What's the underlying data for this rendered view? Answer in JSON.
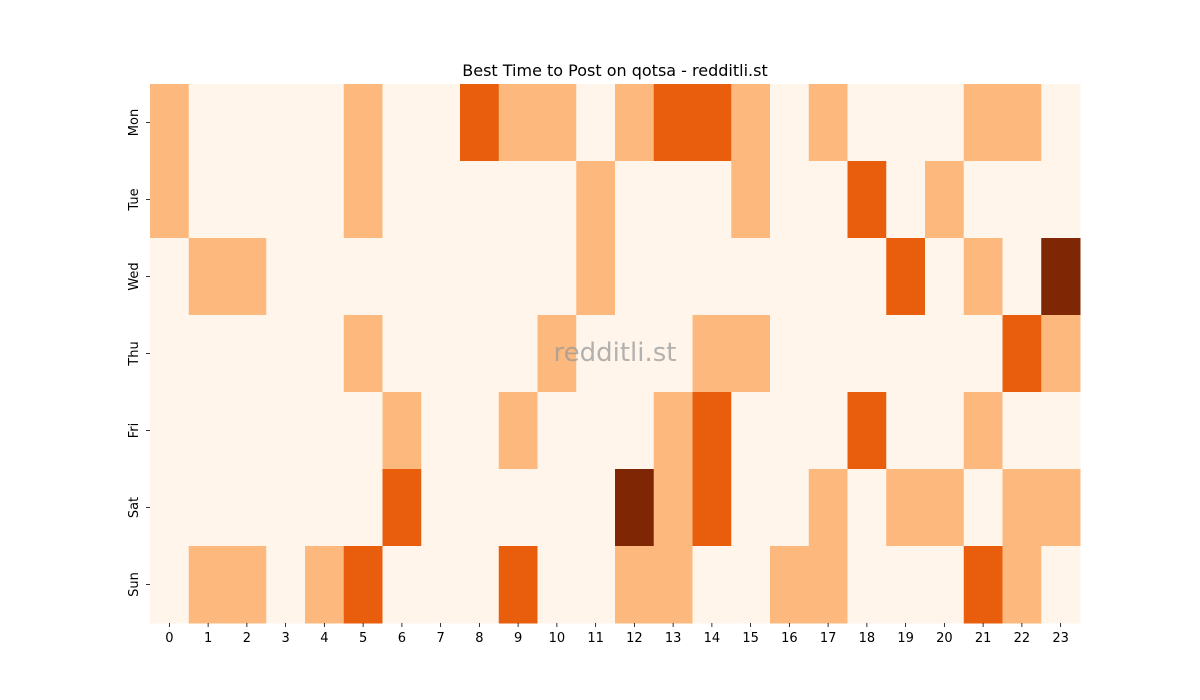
{
  "chart_data": {
    "type": "heatmap",
    "title": "Best Time to Post on qotsa - redditli.st",
    "xlabel": "",
    "ylabel": "",
    "x_categories": [
      "0",
      "1",
      "2",
      "3",
      "4",
      "5",
      "6",
      "7",
      "8",
      "9",
      "10",
      "11",
      "12",
      "13",
      "14",
      "15",
      "16",
      "17",
      "18",
      "19",
      "20",
      "21",
      "22",
      "23"
    ],
    "y_categories": [
      "Mon",
      "Tue",
      "Wed",
      "Thu",
      "Fri",
      "Sat",
      "Sun"
    ],
    "values": [
      [
        1,
        0,
        0,
        0,
        0,
        1,
        0,
        0,
        2,
        1,
        1,
        0,
        1,
        2,
        2,
        1,
        0,
        1,
        0,
        0,
        0,
        1,
        1,
        0
      ],
      [
        1,
        0,
        0,
        0,
        0,
        1,
        0,
        0,
        0,
        0,
        0,
        1,
        0,
        0,
        0,
        1,
        0,
        0,
        2,
        0,
        1,
        0,
        0,
        0
      ],
      [
        0,
        1,
        1,
        0,
        0,
        0,
        0,
        0,
        0,
        0,
        0,
        1,
        0,
        0,
        0,
        0,
        0,
        0,
        0,
        2,
        0,
        1,
        0,
        3
      ],
      [
        0,
        0,
        0,
        0,
        0,
        1,
        0,
        0,
        0,
        0,
        1,
        0,
        0,
        0,
        1,
        1,
        0,
        0,
        0,
        0,
        0,
        0,
        2,
        1
      ],
      [
        0,
        0,
        0,
        0,
        0,
        0,
        1,
        0,
        0,
        1,
        0,
        0,
        0,
        1,
        2,
        0,
        0,
        0,
        2,
        0,
        0,
        1,
        0,
        0
      ],
      [
        0,
        0,
        0,
        0,
        0,
        0,
        2,
        0,
        0,
        0,
        0,
        0,
        3,
        1,
        2,
        0,
        0,
        1,
        0,
        1,
        1,
        0,
        1,
        1
      ],
      [
        0,
        1,
        1,
        0,
        1,
        2,
        0,
        0,
        0,
        2,
        0,
        0,
        1,
        1,
        0,
        0,
        1,
        1,
        0,
        0,
        0,
        2,
        1,
        0
      ]
    ],
    "color_scale": [
      "#fff5eb",
      "#fdb97d",
      "#e95e0d",
      "#7f2704"
    ],
    "colorbar": false,
    "grid": false
  },
  "watermark": "redditli.st"
}
